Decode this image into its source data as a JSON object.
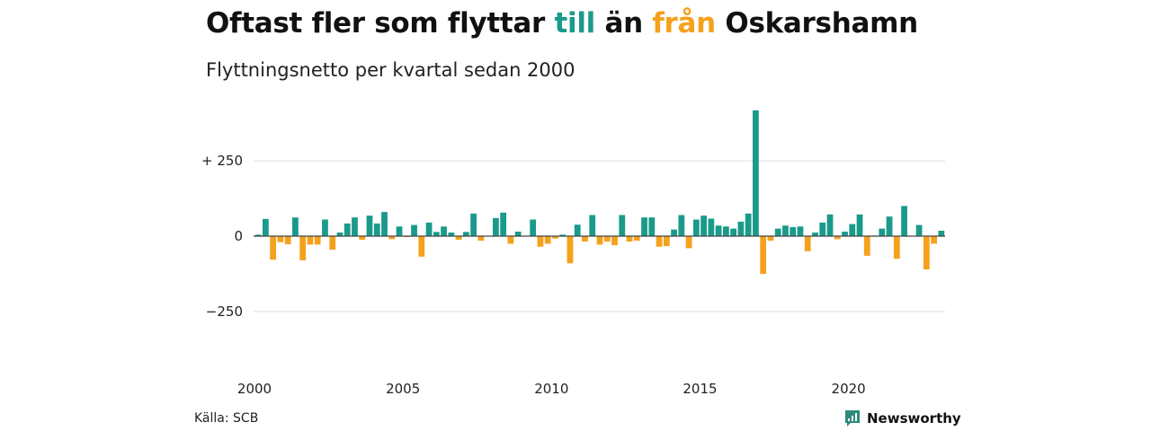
{
  "header": {
    "title_parts": [
      {
        "text": "Oftast fler som flyttar ",
        "color": "#111111"
      },
      {
        "text": "till",
        "color": "#1a9a8a"
      },
      {
        "text": " än ",
        "color": "#111111"
      },
      {
        "text": "från",
        "color": "#f5a11c"
      },
      {
        "text": " Oskarshamn",
        "color": "#111111"
      }
    ],
    "subtitle": "Flyttningsnetto per kvartal sedan 2000"
  },
  "footer": {
    "source": "Källa: SCB",
    "brand": "Newsworthy",
    "brand_icon": "newsworthy-logo-icon"
  },
  "colors": {
    "positive": "#1a9a8a",
    "negative": "#f5a11c",
    "brand": "#2e8b7a",
    "grid": "#dddddd"
  },
  "chart_data": {
    "type": "bar",
    "title": "Oftast fler som flyttar till än från Oskarshamn",
    "subtitle": "Flyttningsnetto per kvartal sedan 2000",
    "xlabel": "",
    "ylabel": "",
    "ylim": [
      -400,
      420
    ],
    "grid": "horizontal",
    "y_ticks": [
      {
        "value": 250,
        "label": "+ 250"
      },
      {
        "value": 0,
        "label": "0"
      },
      {
        "value": -250,
        "label": "−250"
      }
    ],
    "x_ticks": [
      {
        "value": 2000,
        "label": "2000"
      },
      {
        "value": 2005,
        "label": "2005"
      },
      {
        "value": 2010,
        "label": "2010"
      },
      {
        "value": 2015,
        "label": "2015"
      },
      {
        "value": 2020,
        "label": "2020"
      }
    ],
    "x_start": 2000,
    "periods_per_year": 4,
    "values": [
      5,
      57,
      -78,
      -20,
      -27,
      62,
      -80,
      -28,
      -28,
      55,
      -45,
      12,
      42,
      62,
      -12,
      68,
      42,
      80,
      -10,
      32,
      -3,
      37,
      -68,
      45,
      14,
      32,
      12,
      -12,
      14,
      75,
      -15,
      0,
      60,
      78,
      -25,
      15,
      0,
      55,
      -35,
      -25,
      -8,
      5,
      -90,
      38,
      -18,
      70,
      -28,
      -18,
      -30,
      70,
      -18,
      -15,
      62,
      62,
      -35,
      -33,
      22,
      70,
      -40,
      55,
      68,
      58,
      35,
      32,
      25,
      48,
      75,
      417,
      -125,
      -15,
      25,
      35,
      30,
      32,
      -50,
      12,
      45,
      72,
      -10,
      15,
      40,
      72,
      -65,
      2,
      25,
      65,
      -75,
      100,
      0,
      37,
      -110,
      -25,
      18
    ]
  }
}
